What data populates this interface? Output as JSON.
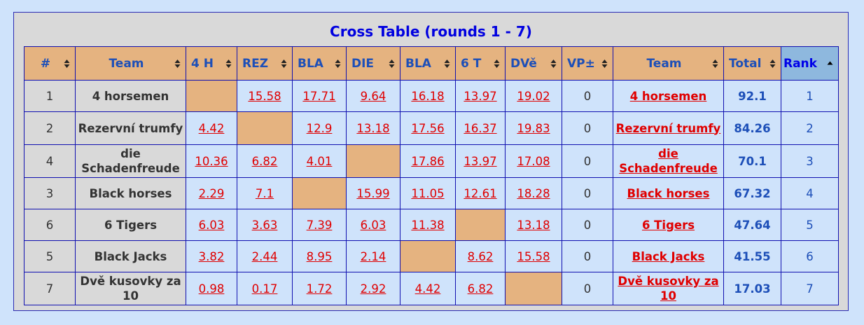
{
  "title": "Cross Table (rounds 1 - 7)",
  "headers": {
    "idx": "#",
    "team": "Team",
    "cols": [
      "4 H",
      "REZ",
      "BLA",
      "DIE",
      "BLA",
      "6 T",
      "DVě"
    ],
    "vp": "VP±",
    "team2": "Team",
    "total": "Total",
    "rank": "Rank"
  },
  "rows": [
    {
      "idx": "1",
      "team": "4 horsemen",
      "scores": [
        "",
        "15.58",
        "17.71",
        "9.64",
        "16.18",
        "13.97",
        "19.02"
      ],
      "self_col": 0,
      "vp": "0",
      "team_link": "4 horsemen",
      "total": "92.1",
      "rank": "1"
    },
    {
      "idx": "2",
      "team": "Rezervní trumfy",
      "scores": [
        "4.42",
        "",
        "12.9",
        "13.18",
        "17.56",
        "16.37",
        "19.83"
      ],
      "self_col": 1,
      "vp": "0",
      "team_link": "Rezervní trumfy",
      "total": "84.26",
      "rank": "2"
    },
    {
      "idx": "4",
      "team": "die Schadenfreude",
      "scores": [
        "10.36",
        "6.82",
        "4.01",
        "",
        "17.86",
        "13.97",
        "17.08"
      ],
      "self_col": 3,
      "vp": "0",
      "team_link": "die Schadenfreude",
      "total": "70.1",
      "rank": "3"
    },
    {
      "idx": "3",
      "team": "Black horses",
      "scores": [
        "2.29",
        "7.1",
        "",
        "15.99",
        "11.05",
        "12.61",
        "18.28"
      ],
      "self_col": 2,
      "vp": "0",
      "team_link": "Black horses",
      "total": "67.32",
      "rank": "4"
    },
    {
      "idx": "6",
      "team": "6 Tigers",
      "scores": [
        "6.03",
        "3.63",
        "7.39",
        "6.03",
        "11.38",
        "",
        "13.18"
      ],
      "self_col": 5,
      "vp": "0",
      "team_link": "6 Tigers",
      "total": "47.64",
      "rank": "5"
    },
    {
      "idx": "5",
      "team": "Black Jacks",
      "scores": [
        "3.82",
        "2.44",
        "8.95",
        "2.14",
        "",
        "8.62",
        "15.58"
      ],
      "self_col": 4,
      "vp": "0",
      "team_link": "Black Jacks",
      "total": "41.55",
      "rank": "6"
    },
    {
      "idx": "7",
      "team": "Dvě kusovky za 10",
      "scores": [
        "0.98",
        "0.17",
        "1.72",
        "2.92",
        "4.42",
        "6.82",
        ""
      ],
      "self_col": 6,
      "vp": "0",
      "team_link": "Dvě kusovky za 10",
      "total": "17.03",
      "rank": "7"
    }
  ],
  "colors": {
    "background": "#cfe3fb",
    "panel": "#d9d9d9",
    "header_bg": "#e5b380",
    "rank_header_bg": "#8eb8de",
    "title": "#0000e0",
    "link": "#e00000",
    "total": "#1d4fb8"
  },
  "icons": {
    "sort": "sort-up-down-icon",
    "sort_active": "sort-ascending-icon"
  }
}
